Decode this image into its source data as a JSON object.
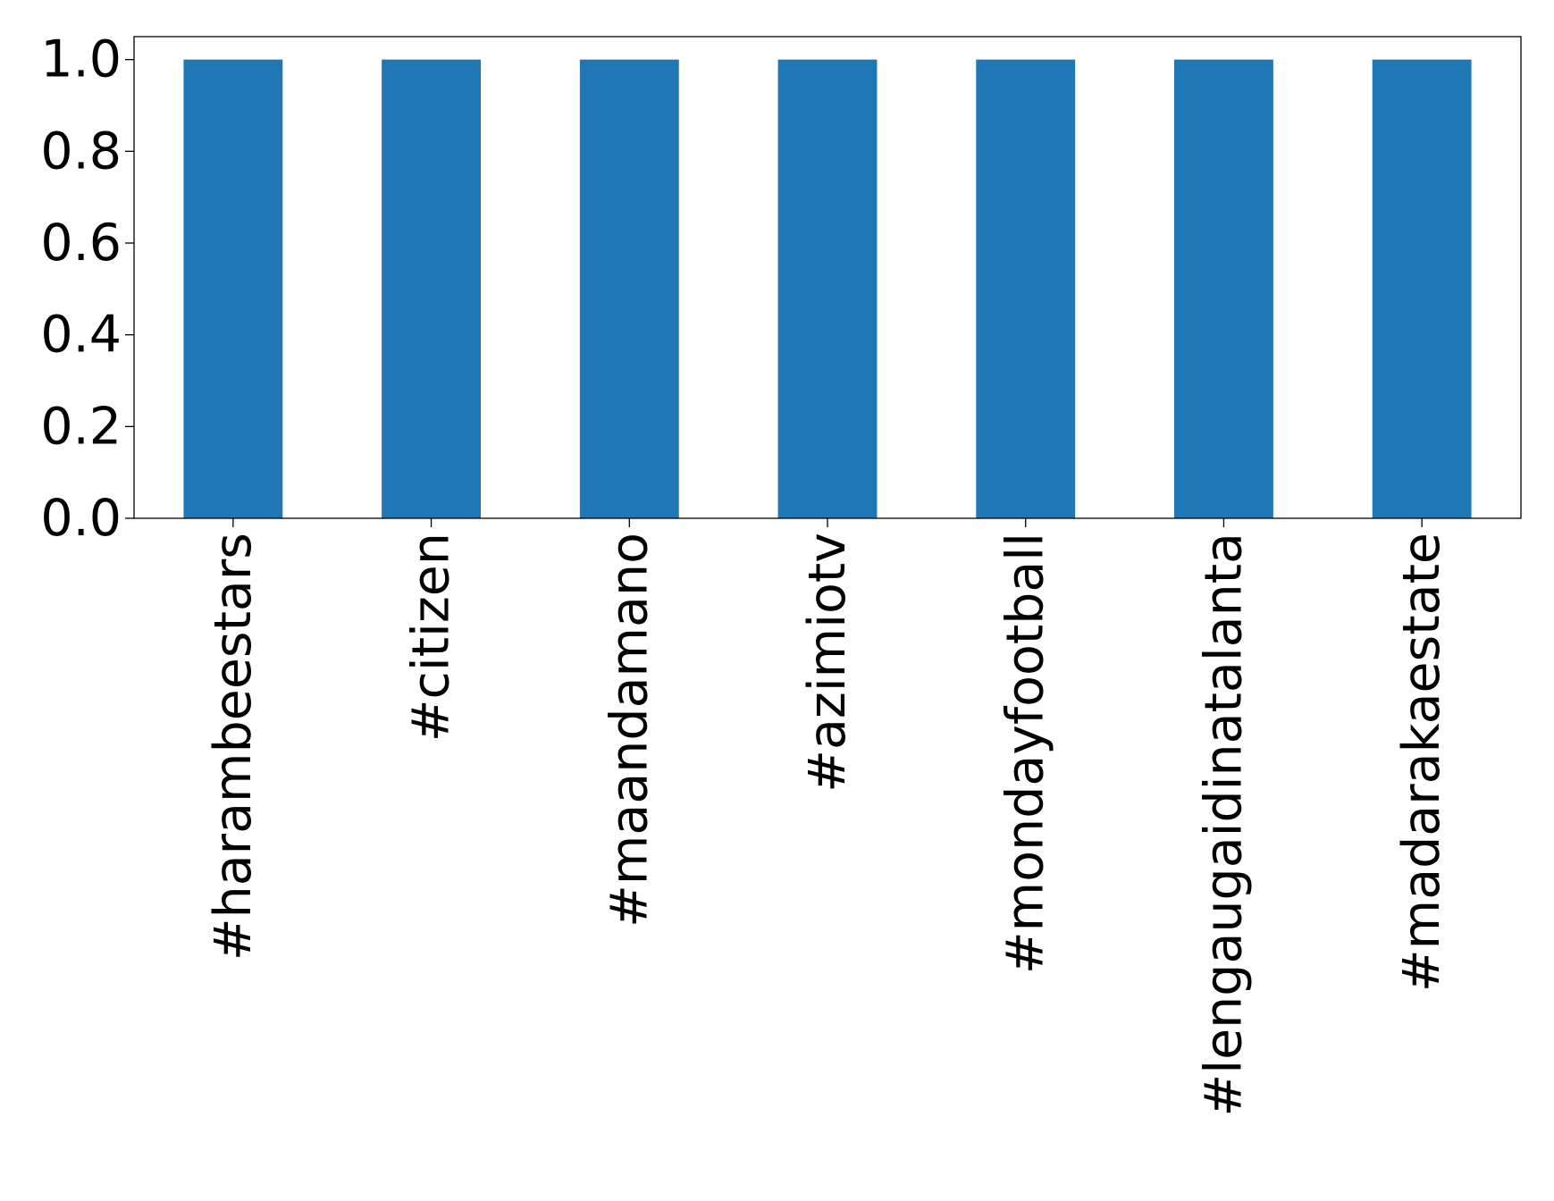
{
  "chart_data": {
    "type": "bar",
    "title": "",
    "xlabel": "",
    "ylabel": "",
    "categories": [
      "#harambeestars",
      "#citizen",
      "#maandamano",
      "#azimiotv",
      "#mondayfootball",
      "#lengaugaidinatalanta",
      "#madarakaestate"
    ],
    "values": [
      1.0,
      1.0,
      1.0,
      1.0,
      1.0,
      1.0,
      1.0
    ],
    "ylim": [
      0,
      1.05
    ],
    "yticks": [
      0.0,
      0.2,
      0.4,
      0.6,
      0.8,
      1.0
    ],
    "ytick_labels": [
      "0.0",
      "0.2",
      "0.4",
      "0.6",
      "0.8",
      "1.0"
    ],
    "grid": false,
    "legend": "none",
    "bar_color": "#1f77b4"
  }
}
